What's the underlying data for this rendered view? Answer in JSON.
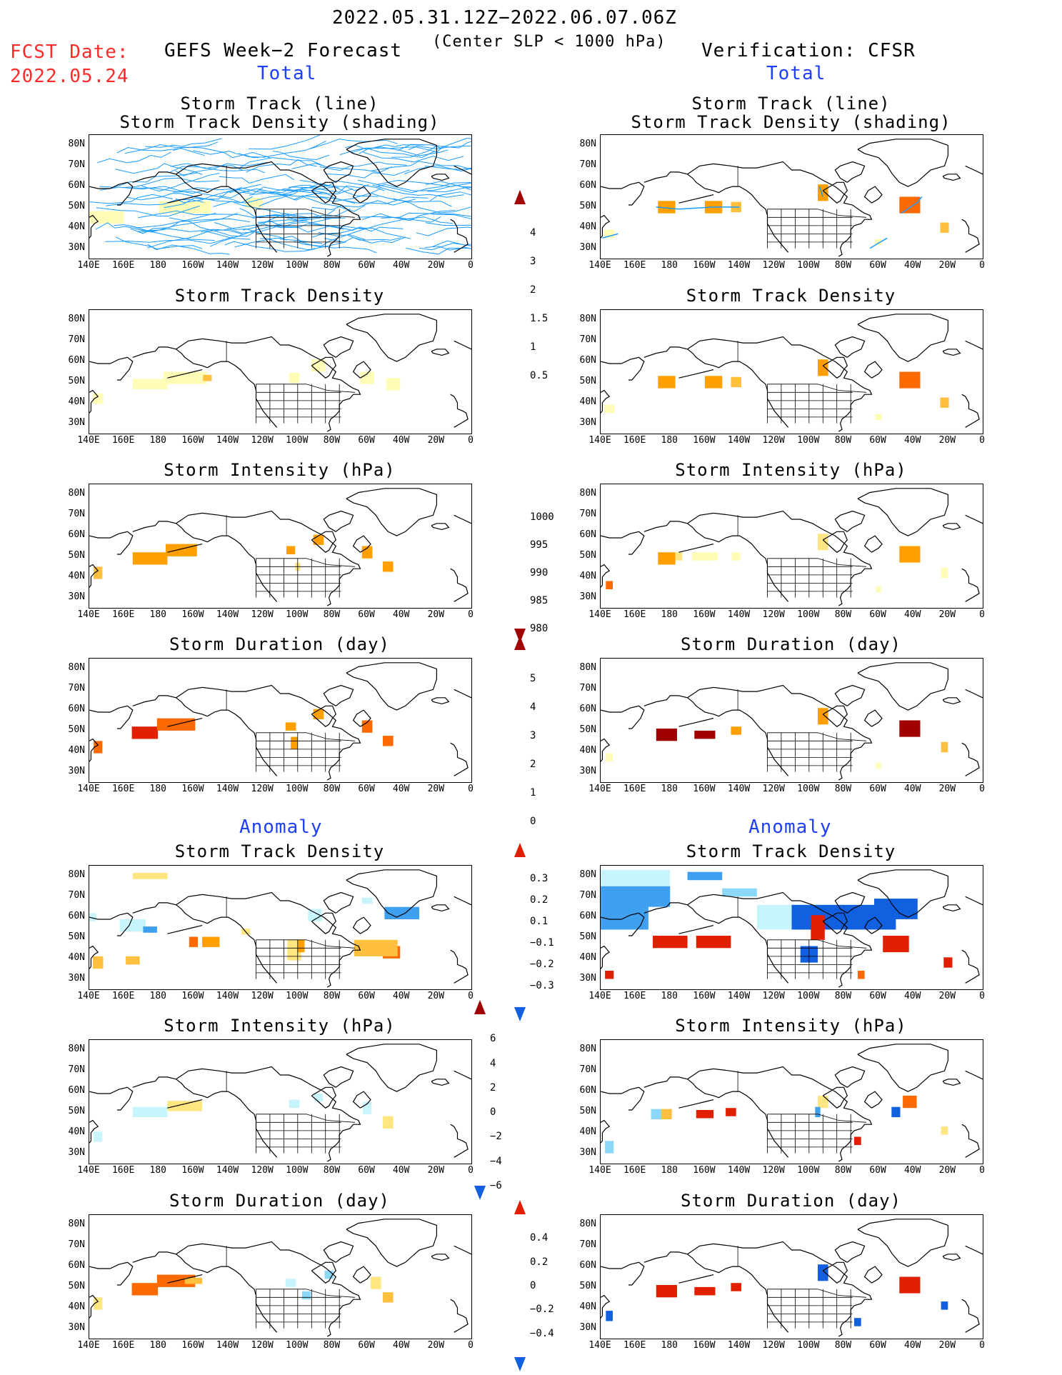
{
  "header": {
    "period": "2022.05.31.12Z−2022.06.07.06Z",
    "criterion": "(Center SLP < 1000 hPa)",
    "fcst_label": "FCST Date:",
    "fcst_date": "2022.05.24",
    "left_title": "GEFS Week−2 Forecast",
    "right_title": "Verification: CFSR",
    "total_label": "Total",
    "anomaly_label": "Anomaly"
  },
  "panel_titles": {
    "track_line": "Storm Track (line)",
    "track_shading": "Storm Track Density (shading)",
    "density": "Storm Track Density",
    "intensity": "Storm Intensity (hPa)",
    "duration": "Storm Duration (day)"
  },
  "axes": {
    "lat_labels": [
      "80N",
      "70N",
      "60N",
      "50N",
      "40N",
      "30N"
    ],
    "lon_labels": [
      "140E",
      "160E",
      "180",
      "160W",
      "140W",
      "120W",
      "100W",
      "80W",
      "60W",
      "40W",
      "20W",
      "0"
    ]
  },
  "colorbars": {
    "density": [
      "4",
      "3",
      "2",
      "1.5",
      "1",
      "0.5"
    ],
    "intensity": [
      "1000",
      "995",
      "990",
      "985",
      "980"
    ],
    "duration": [
      "5",
      "4",
      "3",
      "2",
      "1",
      "0"
    ],
    "density_anom": [
      "0.3",
      "0.2",
      "0.1",
      "−0.1",
      "−0.2",
      "−0.3"
    ],
    "intensity_anom": [
      "6",
      "4",
      "2",
      "0",
      "−2",
      "−4",
      "−6"
    ],
    "duration_anom": [
      "0.4",
      "0.2",
      "0",
      "−0.2",
      "−0.4"
    ]
  },
  "colors": {
    "positive_scale": [
      "#fffcb8",
      "#ffe680",
      "#ffc040",
      "#ffa000",
      "#ff6a00",
      "#e02000",
      "#a00000"
    ],
    "negative_scale": [
      "#c8f4fc",
      "#8cd8f8",
      "#40a0f0",
      "#1060e0"
    ],
    "track_line": "#1a9bff"
  }
}
